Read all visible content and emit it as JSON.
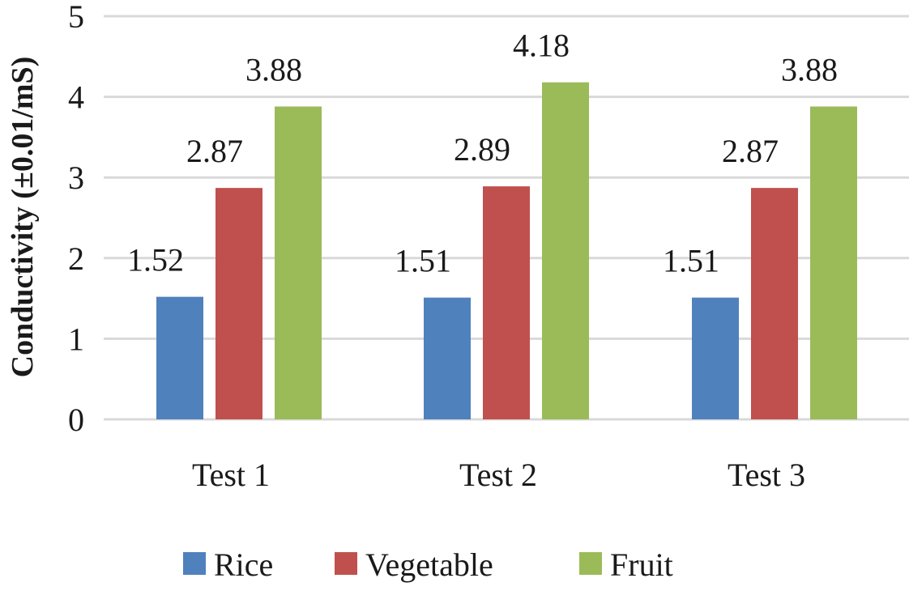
{
  "chart_data": {
    "type": "bar",
    "title": "",
    "xlabel": "",
    "ylabel": "Conductivity (±0.01/mS)",
    "ylim": [
      0,
      5
    ],
    "yticks": [
      0,
      1,
      2,
      3,
      4,
      5
    ],
    "categories": [
      "Test 1",
      "Test 2",
      "Test 3"
    ],
    "series": [
      {
        "name": "Rice",
        "color": "#4f81bd",
        "values": [
          1.52,
          1.51,
          1.51
        ],
        "labels": [
          "1.52",
          "1.51",
          "1.51"
        ]
      },
      {
        "name": "Vegetable",
        "color": "#c0504d",
        "values": [
          2.87,
          2.89,
          2.87
        ],
        "labels": [
          "2.87",
          "2.89",
          "2.87"
        ]
      },
      {
        "name": "Fruit",
        "color": "#9bbb59",
        "values": [
          3.88,
          4.18,
          3.88
        ],
        "labels": [
          "3.88",
          "4.18",
          "3.88"
        ]
      }
    ],
    "grid": true,
    "legend_position": "bottom"
  }
}
